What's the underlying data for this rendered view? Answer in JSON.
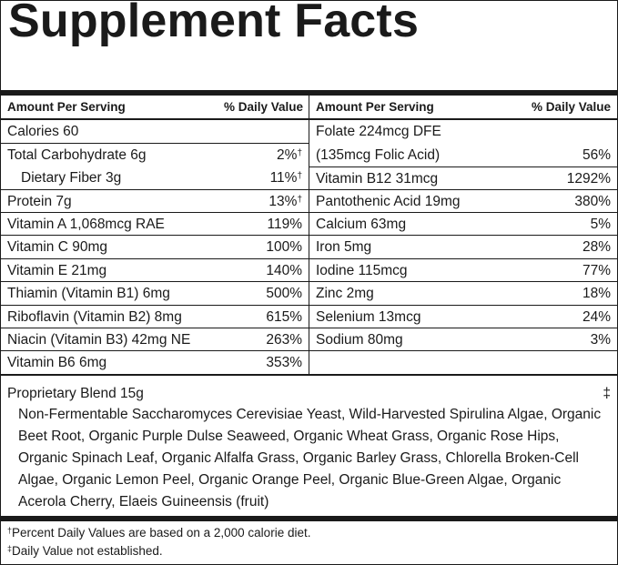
{
  "title": "Supplement Facts",
  "header": {
    "amount_label": "Amount Per Serving",
    "dv_label": "% Daily Value"
  },
  "left_rows": [
    {
      "name": "Calories  60",
      "dv": "",
      "mark": ""
    },
    {
      "name": "Total Carbohydrate  6g",
      "dv": "2%",
      "mark": "†"
    },
    {
      "name": "Dietary Fiber  3g",
      "dv": "11%",
      "mark": "†"
    },
    {
      "name": "Protein  7g",
      "dv": "13%",
      "mark": "†"
    },
    {
      "name": "Vitamin A  1,068mcg RAE",
      "dv": "119%",
      "mark": ""
    },
    {
      "name": "Vitamin C  90mg",
      "dv": "100%",
      "mark": ""
    },
    {
      "name": "Vitamin E  21mg",
      "dv": "140%",
      "mark": ""
    },
    {
      "name": "Thiamin (Vitamin B1)  6mg",
      "dv": "500%",
      "mark": ""
    },
    {
      "name": "Riboflavin (Vitamin B2)  8mg",
      "dv": "615%",
      "mark": ""
    },
    {
      "name": "Niacin (Vitamin B3)  42mg NE",
      "dv": "263%",
      "mark": ""
    },
    {
      "name": "Vitamin B6  6mg",
      "dv": "353%",
      "mark": ""
    }
  ],
  "right_rows": [
    {
      "name": "Folate  224mcg DFE",
      "dv": ""
    },
    {
      "name": "(135mcg Folic Acid)",
      "dv": "56%"
    },
    {
      "name": "Vitamin B12  31mcg",
      "dv": "1292%"
    },
    {
      "name": "Pantothenic Acid  19mg",
      "dv": "380%"
    },
    {
      "name": "Calcium  63mg",
      "dv": "5%"
    },
    {
      "name": "Iron  5mg",
      "dv": "28%"
    },
    {
      "name": "Iodine  115mcg",
      "dv": "77%"
    },
    {
      "name": "Zinc  2mg",
      "dv": "18%"
    },
    {
      "name": "Selenium  13mcg",
      "dv": "24%"
    },
    {
      "name": "Sodium  80mg",
      "dv": "3%"
    }
  ],
  "blend": {
    "name": "Proprietary Blend  15g",
    "mark": "‡",
    "ingredients": "Non-Fermentable Saccharomyces Cerevisiae Yeast, Wild-Harvested Spirulina Algae, Organic Beet Root, Organic Purple Dulse Seaweed, Organic Wheat Grass, Organic Rose Hips, Organic Spinach Leaf, Organic Alfalfa Grass, Organic Barley Grass, Chlorella Broken-Cell Algae, Organic Lemon Peel, Organic Orange Peel, Organic Blue-Green Algae, Organic Acerola Cherry, Elaeis Guineensis (fruit)"
  },
  "footnotes": [
    {
      "mark": "†",
      "text": "Percent Daily Values are based on a 2,000 calorie diet."
    },
    {
      "mark": "‡",
      "text": "Daily Value not established."
    }
  ]
}
